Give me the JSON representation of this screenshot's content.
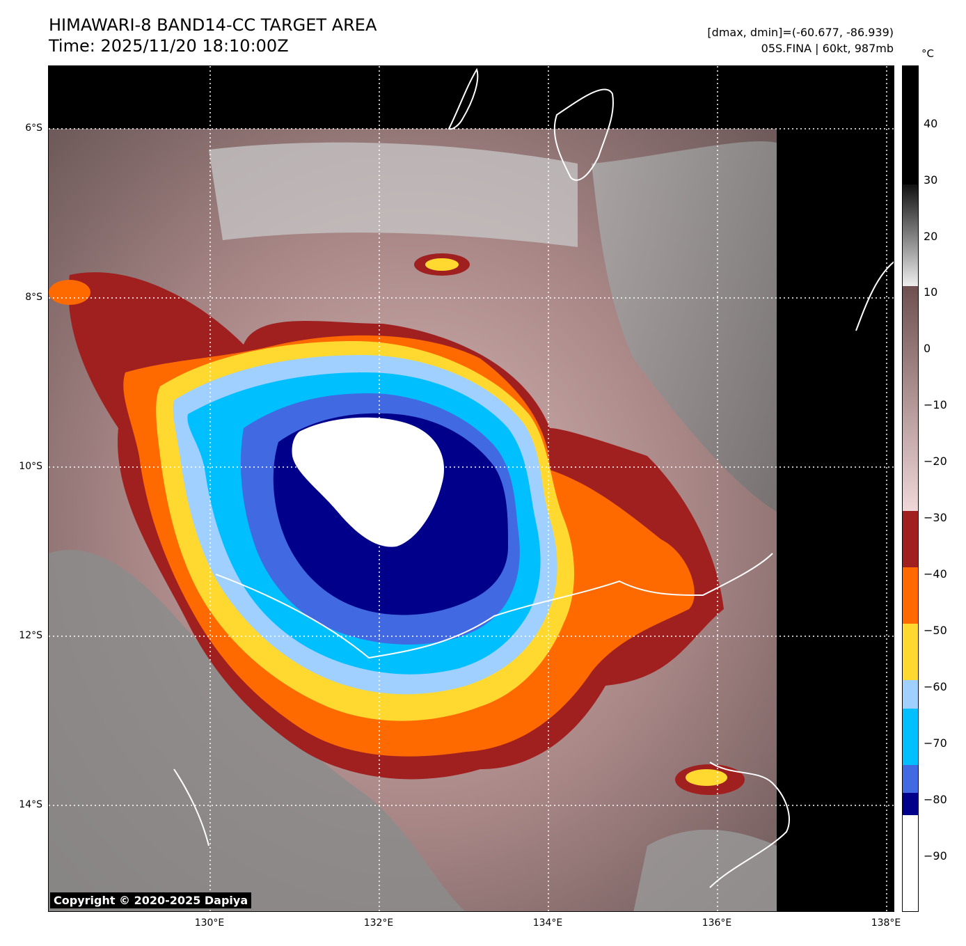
{
  "header": {
    "title": "HIMAWARI-8 BAND14-CC TARGET AREA",
    "time": "Time: 2025/11/20 18:10:00Z",
    "range": "[dmax, dmin]=(-60.677, -86.939)",
    "storm": "05S.FINA | 60kt, 987mb"
  },
  "colorbar": {
    "unit": "°C",
    "labels": [
      "40",
      "30",
      "20",
      "10",
      "0",
      "−10",
      "−20",
      "−30",
      "−40",
      "−50",
      "−60",
      "−70",
      "−80",
      "−90"
    ],
    "bands": [
      {
        "from": 49,
        "to": 28,
        "color": "#000000"
      },
      {
        "from": 28,
        "to": 10,
        "color": "#9a9a9a"
      },
      {
        "from": 10,
        "to": -30,
        "color": "#a08080"
      },
      {
        "from": -30,
        "to": -40,
        "color": "#a02020"
      },
      {
        "from": -40,
        "to": -50,
        "color": "#ff6a00"
      },
      {
        "from": -50,
        "to": -60,
        "color": "#ffd830"
      },
      {
        "from": -60,
        "to": -65,
        "color": "#a0d0ff"
      },
      {
        "from": -65,
        "to": -75,
        "color": "#00bfff"
      },
      {
        "from": -75,
        "to": -80,
        "color": "#4169e1"
      },
      {
        "from": -80,
        "to": -84,
        "color": "#00008b"
      },
      {
        "from": -84,
        "to": -101,
        "color": "#ffffff"
      }
    ]
  },
  "axes": {
    "lat_ticks": [
      "6°S",
      "8°S",
      "10°S",
      "12°S",
      "14°S"
    ],
    "lon_ticks": [
      "130°E",
      "132°E",
      "134°E",
      "136°E",
      "138°E"
    ]
  },
  "copyright": "Copyright © 2020-2025 Dapiya"
}
